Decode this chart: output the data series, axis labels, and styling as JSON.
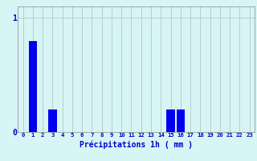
{
  "hours": [
    0,
    1,
    2,
    3,
    4,
    5,
    6,
    7,
    8,
    9,
    10,
    11,
    12,
    13,
    14,
    15,
    16,
    17,
    18,
    19,
    20,
    21,
    22,
    23
  ],
  "values": [
    0,
    0.8,
    0,
    0.2,
    0,
    0,
    0,
    0,
    0,
    0,
    0,
    0,
    0,
    0,
    0,
    0.2,
    0.2,
    0,
    0,
    0,
    0,
    0,
    0,
    0
  ],
  "bar_color": "#0000ee",
  "background_color": "#d8f5f5",
  "grid_color": "#b8cece",
  "axis_label_color": "#0000cc",
  "tick_color": "#0000cc",
  "xlabel": "Précipitations 1h ( mm )",
  "ylim": [
    0,
    1.1
  ],
  "yticks": [
    0,
    1
  ],
  "ytick_labels": [
    "0",
    "1"
  ]
}
